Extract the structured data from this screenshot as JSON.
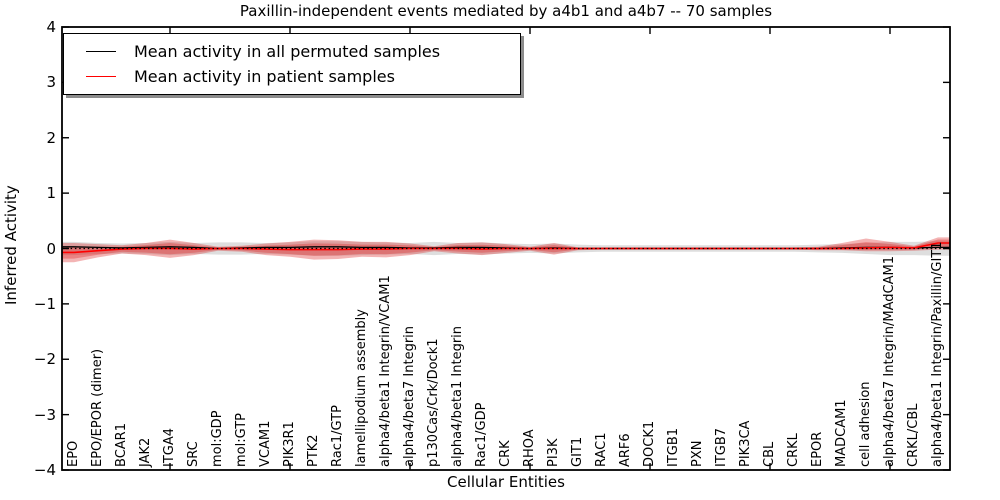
{
  "title": "Paxillin-independent events mediated by a4b1 and a4b7 -- 70 samples",
  "axes": {
    "xlabel": "Cellular Entities",
    "ylabel": "Inferred Activity",
    "yticks": [
      4,
      3,
      2,
      1,
      0,
      -1,
      -2,
      -3,
      -4
    ],
    "ylim": [
      -4,
      4
    ],
    "xtick_interval": 5
  },
  "legend": {
    "position": "upper left",
    "entries": [
      {
        "label": "Mean activity in all permuted samples",
        "color": "#000000"
      },
      {
        "label": "Mean activity in patient samples",
        "color": "#ff0000"
      }
    ]
  },
  "colors": {
    "permuted_line": "#000000",
    "patient_line": "#ff0000",
    "patient_band": "#dd2222",
    "permuted_band": "#000000",
    "zero_line": "#000000"
  },
  "chart_data": {
    "type": "line",
    "title": "Paxillin-independent events mediated by a4b1 and a4b7 -- 70 samples",
    "xlabel": "Cellular Entities",
    "ylabel": "Inferred Activity",
    "ylim": [
      -4,
      4
    ],
    "yticks": [
      -4,
      -3,
      -2,
      -1,
      0,
      1,
      2,
      3,
      4
    ],
    "grid": false,
    "zero_line": "dotted",
    "legend_position": "upper left",
    "categories": [
      "EPO",
      "EPO/EPOR (dimer)",
      "BCAR1",
      "JAK2",
      "ITGA4",
      "SRC",
      "mol:GDP",
      "mol:GTP",
      "VCAM1",
      "PIK3R1",
      "PTK2",
      "Rac1/GTP",
      "lamellipodium assembly",
      "alpha4/beta1 Integrin/VCAM1",
      "alpha4/beta7 Integrin",
      "p130Cas/Crk/Dock1",
      "alpha4/beta1 Integrin",
      "Rac1/GDP",
      "CRK",
      "RHOA",
      "PI3K",
      "GIT1",
      "RAC1",
      "ARF6",
      "DOCK1",
      "ITGB1",
      "PXN",
      "ITGB7",
      "PIK3CA",
      "CBL",
      "CRKL",
      "EPOR",
      "MADCAM1",
      "cell adhesion",
      "alpha4/beta7 Integrin/MAdCAM1",
      "CRKL/CBL",
      "alpha4/beta1 Integrin/Paxillin/GIT1"
    ],
    "series": [
      {
        "name": "Mean activity in all permuted samples",
        "color": "#000000",
        "values": [
          0.03,
          0.02,
          0.01,
          0.02,
          0.03,
          0.02,
          0.0,
          0.01,
          0.02,
          0.02,
          0.03,
          0.03,
          0.02,
          0.02,
          0.01,
          0.01,
          0.02,
          0.02,
          0.01,
          0.0,
          0.01,
          0.0,
          0.0,
          0.0,
          0.0,
          0.0,
          0.0,
          0.0,
          0.0,
          0.0,
          0.0,
          0.0,
          0.01,
          0.02,
          0.02,
          0.01,
          0.02
        ]
      },
      {
        "name": "Mean activity in patient samples",
        "color": "#ff0000",
        "values": [
          -0.07,
          -0.04,
          -0.01,
          0.0,
          0.0,
          -0.01,
          0.0,
          0.0,
          -0.01,
          -0.02,
          -0.02,
          -0.02,
          -0.01,
          -0.01,
          0.0,
          0.0,
          0.0,
          -0.01,
          0.0,
          0.0,
          0.0,
          0.0,
          0.0,
          0.0,
          0.0,
          0.0,
          0.0,
          0.0,
          0.0,
          0.0,
          0.0,
          0.0,
          0.0,
          0.01,
          0.02,
          0.01,
          0.1
        ]
      }
    ],
    "bands": [
      {
        "name": "patient samples band",
        "color": "#dd2222",
        "upper": [
          0.1,
          0.08,
          0.06,
          0.1,
          0.16,
          0.1,
          0.03,
          0.05,
          0.09,
          0.12,
          0.16,
          0.15,
          0.12,
          0.12,
          0.09,
          0.04,
          0.1,
          0.11,
          0.08,
          0.03,
          0.1,
          0.02,
          0.02,
          0.02,
          0.02,
          0.02,
          0.02,
          0.02,
          0.02,
          0.02,
          0.02,
          0.03,
          0.1,
          0.18,
          0.12,
          0.05,
          0.2
        ],
        "lower": [
          -0.25,
          -0.16,
          -0.09,
          -0.12,
          -0.17,
          -0.12,
          -0.04,
          -0.06,
          -0.12,
          -0.15,
          -0.2,
          -0.19,
          -0.15,
          -0.16,
          -0.12,
          -0.05,
          -0.09,
          -0.12,
          -0.08,
          -0.04,
          -0.11,
          -0.03,
          -0.02,
          -0.02,
          -0.02,
          -0.02,
          -0.02,
          -0.02,
          -0.02,
          -0.02,
          -0.02,
          -0.03,
          -0.03,
          -0.05,
          -0.05,
          -0.04,
          -0.02
        ]
      },
      {
        "name": "permuted samples band",
        "color": "#000000",
        "upper": [
          0.12,
          0.1,
          0.09,
          0.1,
          0.12,
          0.1,
          0.11,
          0.11,
          0.1,
          0.11,
          0.13,
          0.13,
          0.12,
          0.11,
          0.1,
          0.12,
          0.1,
          0.11,
          0.09,
          0.08,
          0.09,
          0.07,
          0.06,
          0.06,
          0.06,
          0.06,
          0.06,
          0.06,
          0.06,
          0.06,
          0.06,
          0.07,
          0.08,
          0.1,
          0.12,
          0.12,
          0.13
        ],
        "lower": [
          -0.12,
          -0.1,
          -0.09,
          -0.1,
          -0.12,
          -0.1,
          -0.11,
          -0.11,
          -0.1,
          -0.11,
          -0.13,
          -0.13,
          -0.12,
          -0.11,
          -0.1,
          -0.12,
          -0.1,
          -0.11,
          -0.09,
          -0.08,
          -0.09,
          -0.07,
          -0.06,
          -0.06,
          -0.06,
          -0.06,
          -0.06,
          -0.06,
          -0.06,
          -0.06,
          -0.06,
          -0.07,
          -0.08,
          -0.1,
          -0.12,
          -0.12,
          -0.13
        ]
      }
    ]
  }
}
